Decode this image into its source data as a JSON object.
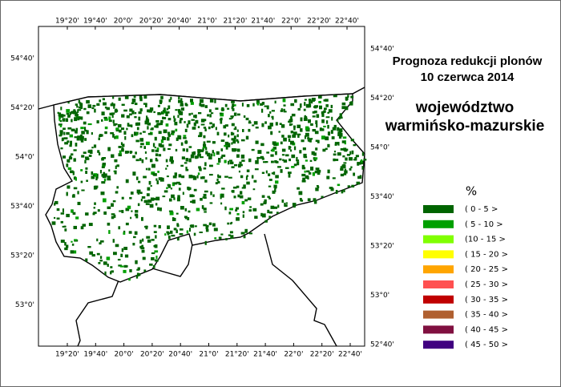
{
  "title": [
    "Prognoza redukcji plonów",
    "10 czerwca 2014"
  ],
  "region": [
    "województwo",
    "warmińsko-mazurskie"
  ],
  "legend": {
    "title": "%",
    "items": [
      {
        "label": "( 0 - 5 >",
        "color": "#006400"
      },
      {
        "label": "( 5 - 10 >",
        "color": "#00a000"
      },
      {
        "label": "(10 - 15 >",
        "color": "#80ff00"
      },
      {
        "label": "( 15 - 20 >",
        "color": "#ffff00"
      },
      {
        "label": "( 20 - 25 >",
        "color": "#ffa500"
      },
      {
        "label": "( 25 - 30 >",
        "color": "#ff5050"
      },
      {
        "label": "( 30 - 35 >",
        "color": "#c00000"
      },
      {
        "label": "( 35 - 40 >",
        "color": "#b06030"
      },
      {
        "label": "( 40 - 45 >",
        "color": "#801040"
      },
      {
        "label": "( 45 - 50 >",
        "color": "#400080"
      }
    ]
  },
  "axes": {
    "top": [
      "19°20'",
      "19°40'",
      "20°0'",
      "20°20'",
      "20°40'",
      "21°0'",
      "21°20'",
      "21°40'",
      "22°0'",
      "22°20'",
      "22°40'"
    ],
    "bottom": [
      "19°20'",
      "19°40'",
      "20°0'",
      "20°20'",
      "20°40'",
      "21°0'",
      "21°20'",
      "21°40'",
      "22°0'",
      "22°20'",
      "22°40'"
    ],
    "left": [
      "54°40'",
      "54°20'",
      "54°0'",
      "53°40'",
      "53°20'",
      "53°0'"
    ],
    "right": [
      "54°40'",
      "54°20'",
      "54°0'",
      "53°40'",
      "53°20'",
      "53°0'",
      "52°40'"
    ]
  }
}
